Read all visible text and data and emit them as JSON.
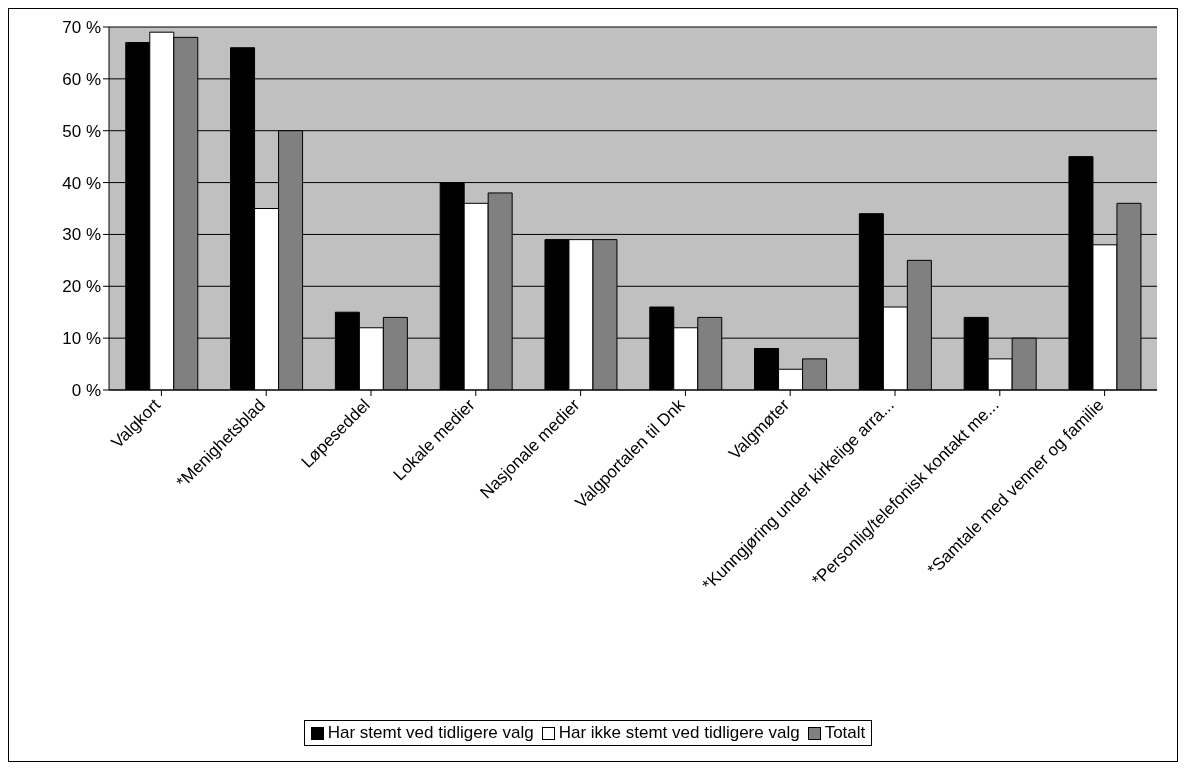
{
  "chart_data": {
    "type": "bar",
    "categories": [
      "Valgkort",
      "*Menighetsblad",
      "Løpeseddel",
      "Lokale medier",
      "Nasjonale medier",
      "Valgportalen til Dnk",
      "Valgmøter",
      "*Kunngjøring under kirkelige arra...",
      "*Personlig/telefonisk kontakt me...",
      "*Samtale med venner og familie"
    ],
    "series": [
      {
        "name": "Har stemt ved tidligere valg",
        "color": "#000000",
        "values": [
          67,
          66,
          15,
          40,
          29,
          16,
          8,
          34,
          14,
          45
        ]
      },
      {
        "name": "Har ikke stemt ved tidligere valg",
        "color": "#ffffff",
        "values": [
          69,
          35,
          12,
          36,
          29,
          12,
          4,
          16,
          6,
          28
        ]
      },
      {
        "name": "Totalt",
        "color": "#808080",
        "values": [
          68,
          50,
          14,
          38,
          29,
          14,
          6,
          25,
          10,
          36
        ]
      }
    ],
    "ylim": [
      0,
      70
    ],
    "yticks": [
      {
        "value": 0,
        "label": "0 %"
      },
      {
        "value": 10,
        "label": "10 %"
      },
      {
        "value": 20,
        "label": "20 %"
      },
      {
        "value": 30,
        "label": "30 %"
      },
      {
        "value": 40,
        "label": "40 %"
      },
      {
        "value": 50,
        "label": "50 %"
      },
      {
        "value": 60,
        "label": "60 %"
      },
      {
        "value": 70,
        "label": "70 %"
      }
    ],
    "grid": "y",
    "legend": "bottom"
  }
}
